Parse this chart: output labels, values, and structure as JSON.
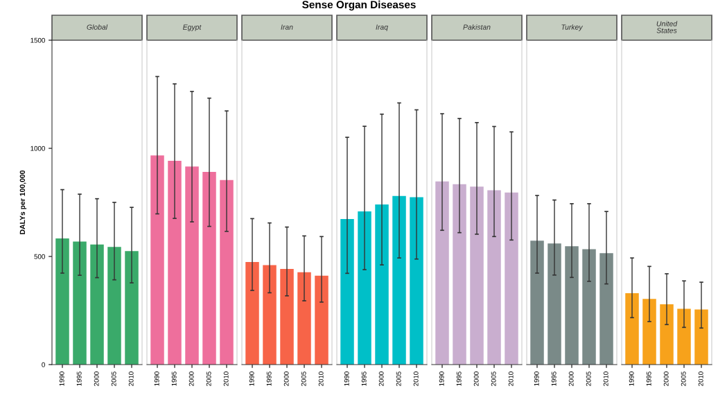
{
  "chart_data": [
    {
      "type": "bar",
      "title": "Global",
      "ylabel": "DALYs per 100,000",
      "categories": [
        "1990",
        "1995",
        "2000",
        "2005",
        "2010"
      ],
      "values": [
        583,
        569,
        555,
        544,
        525
      ],
      "errors": [
        [
          423,
          809
        ],
        [
          413,
          788
        ],
        [
          402,
          767
        ],
        [
          392,
          750
        ],
        [
          378,
          727
        ]
      ],
      "color": "#3aaa6a",
      "ylim": [
        0,
        1500
      ],
      "yticks": [
        0,
        500,
        1000,
        1500
      ]
    },
    {
      "type": "bar",
      "title": "Egypt",
      "categories": [
        "1990",
        "1995",
        "2000",
        "2005",
        "2010"
      ],
      "values": [
        967,
        942,
        916,
        891,
        853
      ],
      "errors": [
        [
          697,
          1332
        ],
        [
          676,
          1298
        ],
        [
          660,
          1263
        ],
        [
          639,
          1232
        ],
        [
          616,
          1173
        ]
      ],
      "color": "#ee6f9c",
      "ylim": [
        0,
        1500
      ],
      "yticks": [
        0,
        500,
        1000,
        1500
      ],
      "tick_labels": "x"
    },
    {
      "type": "bar",
      "title": "Iran",
      "categories": [
        "1990",
        "1995",
        "2000",
        "2005",
        "2010"
      ],
      "values": [
        474,
        460,
        442,
        427,
        411
      ],
      "errors": [
        [
          343,
          675
        ],
        [
          332,
          655
        ],
        [
          318,
          636
        ],
        [
          295,
          595
        ],
        [
          289,
          592
        ]
      ],
      "color": "#f76448",
      "ylim": [
        0,
        1500
      ],
      "yticks": [
        0,
        500,
        1000,
        1500
      ],
      "tick_labels": "x"
    },
    {
      "type": "bar",
      "title": "Iraq",
      "annotations": [
        "Sense Organ Diseases"
      ],
      "categories": [
        "1990",
        "1995",
        "2000",
        "2005",
        "2010"
      ],
      "values": [
        673,
        708,
        740,
        780,
        774
      ],
      "errors": [
        [
          422,
          1051
        ],
        [
          439,
          1102
        ],
        [
          461,
          1158
        ],
        [
          493,
          1210
        ],
        [
          488,
          1178
        ]
      ],
      "color": "#00bfc8",
      "ylim": [
        0,
        1500
      ],
      "yticks": [
        0,
        500,
        1000,
        1500
      ],
      "tick_labels": "x"
    },
    {
      "type": "bar",
      "title": "Pakistan",
      "categories": [
        "1990",
        "1995",
        "2000",
        "2005",
        "2010"
      ],
      "values": [
        847,
        834,
        823,
        806,
        796
      ],
      "errors": [
        [
          621,
          1160
        ],
        [
          610,
          1138
        ],
        [
          603,
          1119
        ],
        [
          592,
          1101
        ],
        [
          576,
          1076
        ]
      ],
      "color": "#c9aecf",
      "ylim": [
        0,
        1500
      ],
      "yticks": [
        0,
        500,
        1000,
        1500
      ],
      "tick_labels": "x"
    },
    {
      "type": "bar",
      "title": "Turkey",
      "categories": [
        "1990",
        "1995",
        "2000",
        "2005",
        "2010"
      ],
      "values": [
        573,
        560,
        547,
        534,
        515
      ],
      "errors": [
        [
          423,
          782
        ],
        [
          414,
          761
        ],
        [
          403,
          744
        ],
        [
          385,
          744
        ],
        [
          373,
          708
        ]
      ],
      "color": "#7a8a88",
      "ylim": [
        0,
        1500
      ],
      "yticks": [
        0,
        500,
        1000,
        1500
      ],
      "tick_labels": "x"
    },
    {
      "type": "bar",
      "title": "United\nStates",
      "categories": [
        "1990",
        "1995",
        "2000",
        "2005",
        "2010"
      ],
      "values": [
        330,
        304,
        279,
        258,
        255
      ],
      "errors": [
        [
          217,
          493
        ],
        [
          199,
          454
        ],
        [
          185,
          420
        ],
        [
          172,
          387
        ],
        [
          169,
          381
        ]
      ],
      "color": "#f7a21b",
      "ylim": [
        0,
        1500
      ],
      "yticks": [
        0,
        500,
        1000,
        1500
      ],
      "tick_labels": "x"
    }
  ]
}
